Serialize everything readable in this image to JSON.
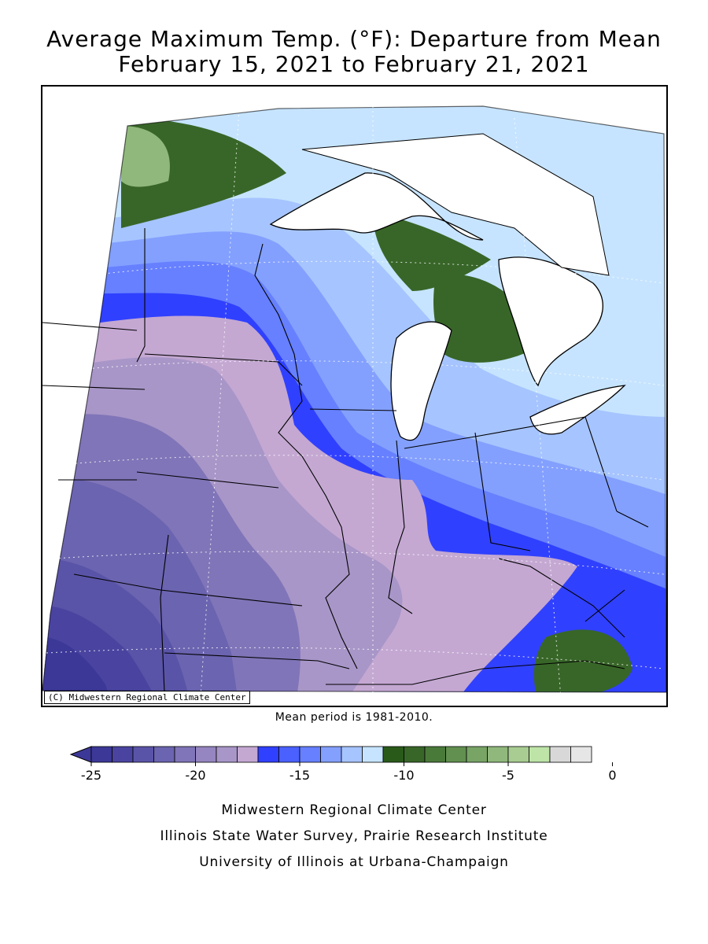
{
  "title": {
    "line1": "Average Maximum Temp. (°F): Departure from Mean",
    "line2": "February 15, 2021 to February 21, 2021"
  },
  "map": {
    "copyright": "(C) Midwestern Regional Climate Center",
    "mean_period": "Mean period is 1981-2010."
  },
  "legend": {
    "bins": [
      {
        "color": "#3c3897"
      },
      {
        "color": "#4a44a0"
      },
      {
        "color": "#5a54a8"
      },
      {
        "color": "#6b64b0"
      },
      {
        "color": "#8075b8"
      },
      {
        "color": "#9585c0"
      },
      {
        "color": "#a896c8"
      },
      {
        "color": "#c4a8d2"
      },
      {
        "color": "#3040ff"
      },
      {
        "color": "#4a60ff"
      },
      {
        "color": "#6680ff"
      },
      {
        "color": "#83a0ff"
      },
      {
        "color": "#a6c4ff"
      },
      {
        "color": "#c6e4ff"
      },
      {
        "color": "#2a5a1a"
      },
      {
        "color": "#386628"
      },
      {
        "color": "#4a7a3a"
      },
      {
        "color": "#629050"
      },
      {
        "color": "#78a466"
      },
      {
        "color": "#90b87c"
      },
      {
        "color": "#a8cc92"
      },
      {
        "color": "#bee4a8"
      },
      {
        "color": "#d8d8d8"
      },
      {
        "color": "#e6e6e6"
      }
    ],
    "tick_labels": [
      "-25",
      "-20",
      "-15",
      "-10",
      "-5",
      "0"
    ]
  },
  "footer": {
    "line1": "Midwestern Regional Climate Center",
    "line2": "Illinois State Water Survey, Prairie Research Institute",
    "line3": "University of Illinois at Urbana-Champaign"
  }
}
